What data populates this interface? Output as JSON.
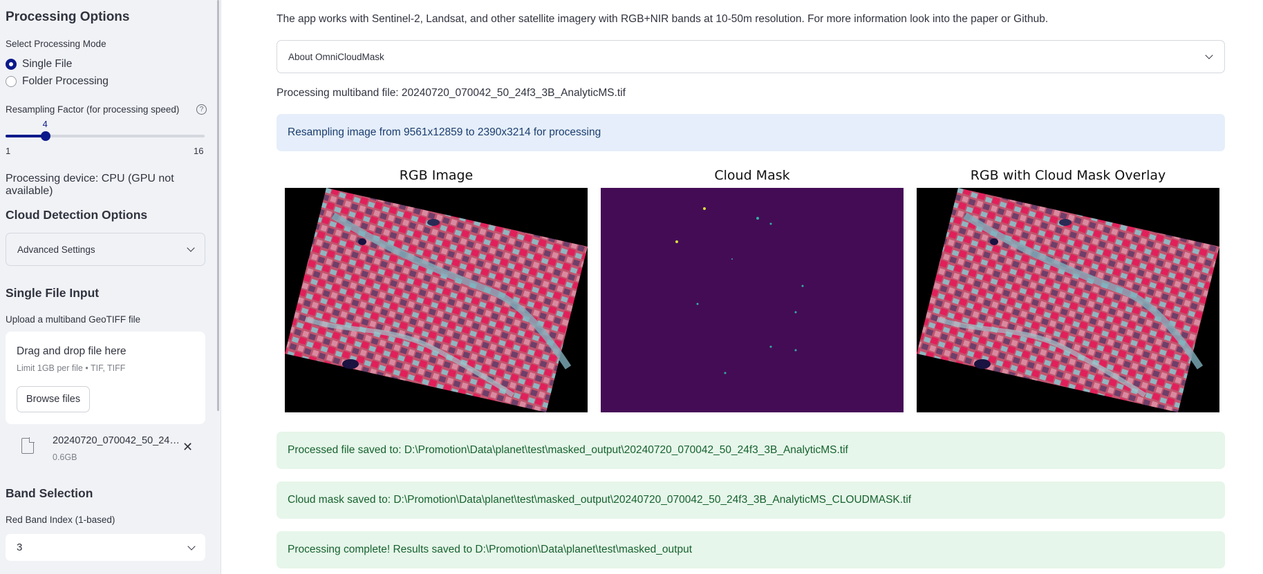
{
  "sidebar": {
    "processing_options_title": "Processing Options",
    "mode_label": "Select Processing Mode",
    "mode_options": [
      "Single File",
      "Folder Processing"
    ],
    "selected_mode": "Single File",
    "resampling_label": "Resampling Factor (for processing speed)",
    "resampling": {
      "value": "4",
      "min": "1",
      "max": "16",
      "fraction": 0.2
    },
    "device_text": "Processing device: CPU (GPU not available)",
    "cloud_detection_title": "Cloud Detection Options",
    "advanced_settings_label": "Advanced Settings",
    "single_file_title": "Single File Input",
    "upload_label": "Upload a multiband GeoTIFF file",
    "dropzone": {
      "title": "Drag and drop file here",
      "limit": "Limit 1GB per file • TIF, TIFF",
      "browse_label": "Browse files"
    },
    "uploaded_file": {
      "name": "20240720_070042_50_24f3_3B_AnalyticMS.tif",
      "size": "0.6GB"
    },
    "band_selection_title": "Band Selection",
    "red_band_label": "Red Band Index (1-based)",
    "red_band_value": "3"
  },
  "main": {
    "intro": "The app works with Sentinel-2, Landsat, and other satellite imagery with RGB+NIR bands at 10-50m resolution. For more information look into the paper or Github.",
    "about_label": "About OmniCloudMask",
    "processing_file": "Processing multiband file: 20240720_070042_50_24f3_3B_AnalyticMS.tif",
    "resampling_info": "Resampling image from 9561x12859 to 2390x3214 for processing",
    "panels": [
      "RGB Image",
      "Cloud Mask",
      "RGB with Cloud Mask Overlay"
    ],
    "success_messages": [
      "Processed file saved to: D:\\Promotion\\Data\\planet\\test\\masked_output\\20240720_070042_50_24f3_3B_AnalyticMS.tif",
      "Cloud mask saved to: D:\\Promotion\\Data\\planet\\test\\masked_output\\20240720_070042_50_24f3_3B_AnalyticMS_CLOUDMASK.tif",
      "Processing complete! Results saved to D:\\Promotion\\Data\\planet\\test\\masked_output"
    ]
  },
  "colors": {
    "accent": "#0b1a8a",
    "sidebar_bg": "#f0f2f6",
    "info_bg": "#e5eefa",
    "success_bg": "#e6f6ea",
    "mask_bg": "#450c56"
  }
}
